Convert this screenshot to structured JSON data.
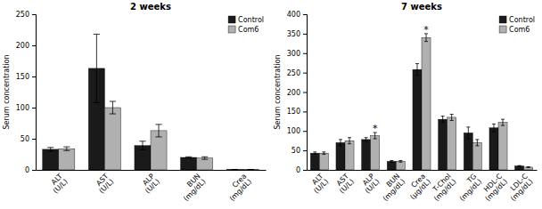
{
  "chart_data": [
    {
      "type": "bar",
      "title": "2 weeks",
      "ylabel": "Serum concentration",
      "categories": [
        "ALT\n(U/L)",
        "AST\n(U/L)",
        "ALP\n(U/L)",
        "BUN\n(mg/dL)",
        "Crea\n(mg/dL)"
      ],
      "series": [
        {
          "name": "Control",
          "color": "#1a1a1a",
          "values": [
            33,
            163,
            39,
            20,
            0.5
          ],
          "errors": [
            3,
            55,
            7,
            1,
            0.05
          ]
        },
        {
          "name": "Com6",
          "color": "#b0b0b0",
          "values": [
            34,
            100,
            63,
            19,
            0.5
          ],
          "errors": [
            3,
            10,
            10,
            2,
            0.05
          ]
        }
      ],
      "ylim": [
        0,
        250
      ],
      "yticks": [
        0,
        50,
        100,
        150,
        200,
        250
      ],
      "legend": "upper right"
    },
    {
      "type": "bar",
      "title": "7 weeks",
      "ylabel": "Serum concentration",
      "categories": [
        "ALT\n(U/L)",
        "AST\n(U/L)",
        "ALP\n(U/L)",
        "BUN\n(mg/dL)",
        "Crea\n(μg/dL)",
        "T-Chol\n(mg/dL)",
        "TG\n(mg/dL)",
        "HDL-C\n(mg/dL)",
        "LDL-C\n(mg/dL)"
      ],
      "series": [
        {
          "name": "Control",
          "color": "#1a1a1a",
          "values": [
            43,
            70,
            78,
            22,
            258,
            130,
            95,
            108,
            10
          ],
          "errors": [
            3,
            8,
            5,
            2,
            15,
            8,
            15,
            10,
            1
          ]
        },
        {
          "name": "Com6",
          "color": "#b0b0b0",
          "values": [
            43,
            75,
            88,
            22,
            340,
            135,
            70,
            122,
            7
          ],
          "errors": [
            3,
            8,
            8,
            2,
            10,
            8,
            8,
            8,
            1
          ],
          "annotations": [
            null,
            null,
            "*",
            null,
            "*",
            null,
            null,
            null,
            null
          ]
        }
      ],
      "ylim": [
        0,
        400
      ],
      "yticks": [
        0,
        50,
        100,
        150,
        200,
        250,
        300,
        350,
        400
      ],
      "legend": "upper right"
    }
  ]
}
